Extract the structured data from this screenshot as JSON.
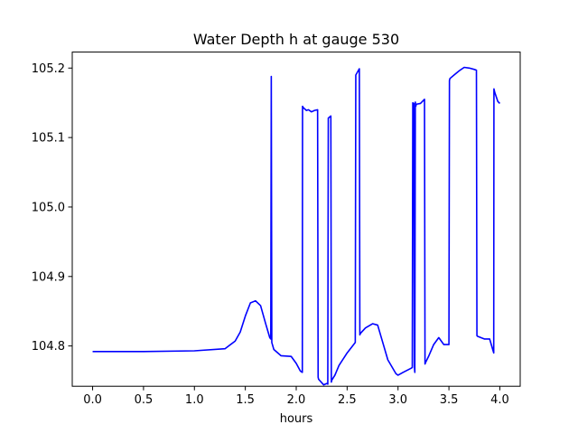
{
  "chart_data": {
    "type": "line",
    "title": "Water Depth h at gauge 530",
    "xlabel": "hours",
    "ylabel": "",
    "xlim": [
      -0.2,
      4.2
    ],
    "ylim": [
      104.742,
      105.223
    ],
    "xticks": [
      0.0,
      0.5,
      1.0,
      1.5,
      2.0,
      2.5,
      3.0,
      3.5,
      4.0
    ],
    "xtick_labels": [
      "0.0",
      "0.5",
      "1.0",
      "1.5",
      "2.0",
      "2.5",
      "3.0",
      "3.5",
      "4.0"
    ],
    "yticks": [
      104.8,
      104.9,
      105.0,
      105.1,
      105.2
    ],
    "ytick_labels": [
      "104.8",
      "104.9",
      "105.0",
      "105.1",
      "105.2"
    ],
    "grid": false,
    "line_color": "#0000ff",
    "series": [
      {
        "x": [
          0.0,
          0.5,
          1.0,
          1.3,
          1.4,
          1.45,
          1.5,
          1.55,
          1.6,
          1.65,
          1.7,
          1.74,
          1.75,
          1.755,
          1.76,
          1.78,
          1.85,
          1.95,
          2.0,
          2.04,
          2.06,
          2.062,
          2.07,
          2.1,
          2.12,
          2.15,
          2.18,
          2.21,
          2.215,
          2.22,
          2.27,
          2.3,
          2.31,
          2.315,
          2.34,
          2.345,
          2.35,
          2.38,
          2.42,
          2.5,
          2.58,
          2.585,
          2.62,
          2.625,
          2.63,
          2.68,
          2.75,
          2.8,
          2.9,
          2.98,
          3.0,
          3.05,
          3.13,
          3.14,
          3.145,
          3.155,
          3.16,
          3.165,
          3.17,
          3.175,
          3.18,
          3.22,
          3.26,
          3.265,
          3.27,
          3.3,
          3.35,
          3.4,
          3.45,
          3.5,
          3.505,
          3.51,
          3.55,
          3.6,
          3.65,
          3.7,
          3.75,
          3.77,
          3.775,
          3.78,
          3.85,
          3.9,
          3.93,
          3.94,
          3.942,
          3.95,
          3.98,
          4.0
        ],
        "y": [
          104.792,
          104.792,
          104.793,
          104.796,
          104.807,
          104.82,
          104.843,
          104.862,
          104.865,
          104.858,
          104.832,
          104.812,
          104.81,
          105.188,
          104.805,
          104.795,
          104.786,
          104.785,
          104.775,
          104.764,
          104.762,
          105.145,
          105.143,
          105.139,
          105.14,
          105.137,
          105.139,
          105.14,
          104.755,
          104.752,
          104.744,
          104.746,
          104.745,
          105.128,
          105.131,
          104.748,
          104.751,
          104.758,
          104.772,
          104.79,
          104.805,
          105.19,
          105.199,
          104.816,
          104.818,
          104.826,
          104.832,
          104.83,
          104.78,
          104.76,
          104.758,
          104.762,
          104.768,
          104.769,
          105.15,
          105.149,
          104.771,
          104.762,
          105.151,
          105.145,
          105.148,
          105.149,
          105.155,
          104.774,
          104.776,
          104.785,
          104.802,
          104.812,
          104.802,
          104.802,
          105.182,
          105.185,
          105.19,
          105.196,
          105.201,
          105.2,
          105.198,
          105.197,
          104.815,
          104.814,
          104.81,
          104.81,
          104.795,
          104.79,
          105.17,
          105.165,
          105.152,
          105.149
        ]
      }
    ]
  }
}
